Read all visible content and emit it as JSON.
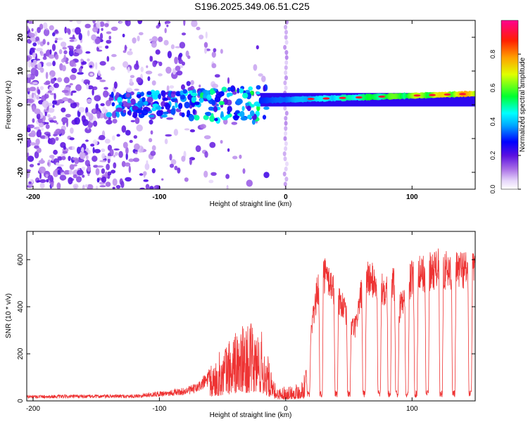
{
  "chart_data": [
    {
      "type": "heatmap",
      "title": "S196.2025.349.06.51.C25",
      "xlabel": "Height of straight line (km)",
      "ylabel": "Frequency (Hz)",
      "xlim": [
        -205,
        150
      ],
      "ylim": [
        -25,
        25
      ],
      "xticks": [
        -200,
        -100,
        0,
        100
      ],
      "yticks": [
        -20,
        -10,
        0,
        10,
        20
      ],
      "colorbar": {
        "label": "Normalized spectral amplitude",
        "range": [
          0,
          1
        ],
        "ticks": [
          0.0,
          0.2,
          0.4,
          0.6,
          0.8
        ],
        "colors": [
          "#ffffff",
          "#e8d8fa",
          "#b98ce8",
          "#7a22e0",
          "#0000ff",
          "#00e0ff",
          "#00ff40",
          "#ffff00",
          "#ff8000",
          "#ff0000",
          "#ff0080"
        ]
      },
      "features": {
        "noise_region_km": [
          -205,
          -60
        ],
        "dispersed_region_km": [
          -140,
          -20
        ],
        "main_band_region_km": [
          -20,
          150
        ],
        "main_band_frequency_hz": 1.5,
        "main_band_peak_amplitude": 0.92,
        "vertical_streak_km": 0
      }
    },
    {
      "type": "line",
      "title": "",
      "xlabel": "Height of straight line (km)",
      "ylabel": "SNR (10 * v/v)",
      "xlim": [
        -205,
        150
      ],
      "ylim": [
        0,
        720
      ],
      "xticks": [
        -200,
        -100,
        0,
        100
      ],
      "yticks": [
        0,
        200,
        400,
        600
      ],
      "color": "#ee3333",
      "envelope": {
        "x": [
          -205,
          -120,
          -100,
          -80,
          -70,
          -60,
          -50,
          -40,
          -30,
          -20,
          -15,
          -10,
          -5,
          0,
          5,
          10,
          15,
          20,
          25,
          30,
          35,
          40,
          45,
          50,
          55,
          60,
          65,
          70,
          75,
          80,
          85,
          90,
          95,
          100,
          110,
          120,
          130,
          140,
          150
        ],
        "y": [
          18,
          20,
          30,
          40,
          55,
          100,
          160,
          210,
          230,
          220,
          150,
          60,
          40,
          45,
          50,
          55,
          80,
          300,
          480,
          560,
          520,
          460,
          420,
          330,
          320,
          480,
          540,
          520,
          480,
          500,
          520,
          400,
          480,
          540,
          560,
          580,
          570,
          580,
          560
        ]
      },
      "dropouts_km": [
        18,
        28,
        40,
        50,
        62,
        74,
        82,
        88,
        96,
        103,
        112,
        123,
        133,
        146
      ],
      "dropout_level": 30
    }
  ]
}
